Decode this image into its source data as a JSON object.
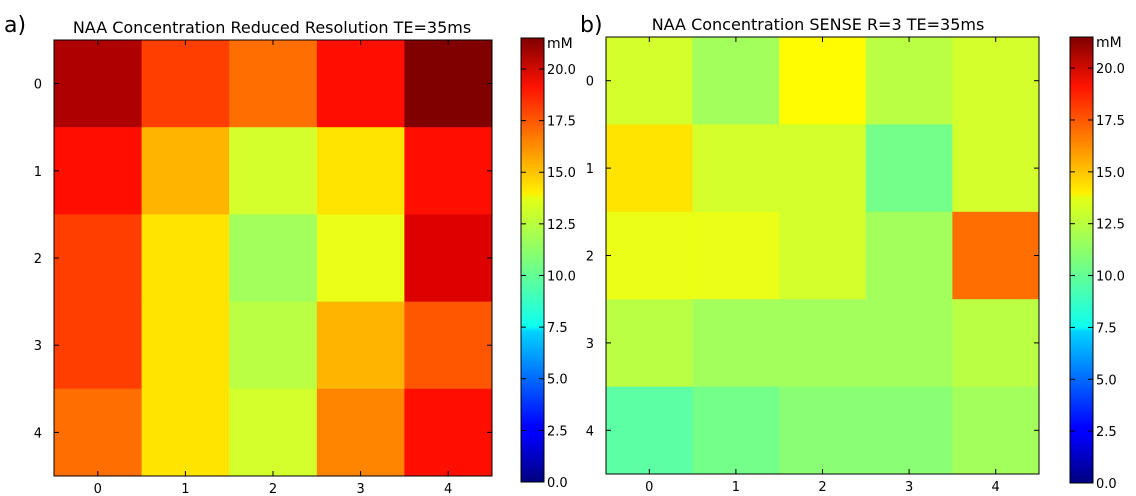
{
  "chart_data": [
    {
      "type": "heatmap",
      "panel_label": "a)",
      "title": "NAA Concentration Reduced Resolution TE=35ms",
      "x_ticks": [
        "0",
        "1",
        "2",
        "3",
        "4"
      ],
      "y_ticks": [
        "0",
        "1",
        "2",
        "3",
        "4"
      ],
      "values": [
        [
          20.5,
          17.5,
          16.5,
          18.5,
          21.5
        ],
        [
          18.5,
          15.0,
          12.5,
          14.0,
          18.5
        ],
        [
          17.5,
          14.0,
          11.5,
          13.0,
          19.5
        ],
        [
          17.5,
          14.0,
          12.0,
          15.0,
          17.0
        ],
        [
          16.5,
          14.0,
          12.5,
          16.0,
          18.5
        ]
      ],
      "colorbar": {
        "unit_label": "mM",
        "range": [
          0,
          21.5
        ],
        "ticks": [
          "0.0",
          "2.5",
          "5.0",
          "7.5",
          "10.0",
          "12.5",
          "15.0",
          "17.5",
          "20.0"
        ],
        "colormap": "jet"
      }
    },
    {
      "type": "heatmap",
      "panel_label": "b)",
      "title": "NAA Concentration SENSE R=3 TE=35ms",
      "x_ticks": [
        "0",
        "1",
        "2",
        "3",
        "4"
      ],
      "y_ticks": [
        "0",
        "1",
        "2",
        "3",
        "4"
      ],
      "values": [
        [
          12.5,
          11.5,
          13.5,
          12.0,
          12.5
        ],
        [
          14.0,
          12.5,
          12.5,
          10.5,
          12.5
        ],
        [
          13.0,
          13.0,
          12.5,
          11.5,
          16.5
        ],
        [
          12.0,
          11.5,
          11.5,
          11.5,
          12.0
        ],
        [
          10.0,
          10.5,
          11.0,
          11.0,
          11.5
        ]
      ],
      "colorbar": {
        "unit_label": "mM",
        "range": [
          0,
          21.5
        ],
        "ticks": [
          "0.0",
          "2.5",
          "5.0",
          "7.5",
          "10.0",
          "12.5",
          "15.0",
          "17.5",
          "20.0"
        ],
        "colormap": "jet"
      }
    }
  ]
}
